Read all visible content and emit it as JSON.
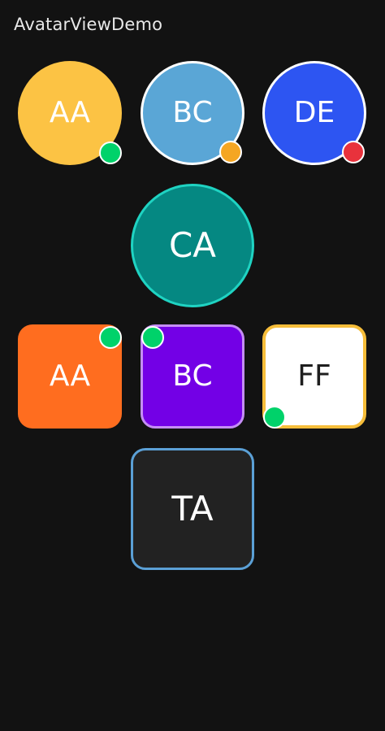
{
  "app": {
    "title": "AvatarViewDemo"
  },
  "colors": {
    "background": "#121212",
    "status_online": "#00d26a",
    "status_away": "#f5a623",
    "status_busy": "#e8323c"
  },
  "avatars": [
    {
      "initials": "AA",
      "shape": "circle",
      "fill": "#fcc344",
      "border": "none",
      "status": "online"
    },
    {
      "initials": "BC",
      "shape": "circle",
      "fill": "#5aa6d6",
      "border": "#ffffff",
      "status": "away"
    },
    {
      "initials": "DE",
      "shape": "circle",
      "fill": "#2d55f2",
      "border": "#ffffff",
      "status": "busy"
    },
    {
      "initials": "CA",
      "shape": "circle",
      "fill": "#058882",
      "border": "#1fd3c2",
      "status": "none"
    },
    {
      "initials": "AA",
      "shape": "rounded-square",
      "fill": "#ff6d1f",
      "border": "none",
      "status": "online"
    },
    {
      "initials": "BC",
      "shape": "rounded-square",
      "fill": "#7300e6",
      "border": "#c58df5",
      "status": "online"
    },
    {
      "initials": "FF",
      "shape": "rounded-square",
      "fill": "#ffffff",
      "border": "#f6bd3a",
      "status": "online"
    },
    {
      "initials": "TA",
      "shape": "rounded-square",
      "fill": "#222222",
      "border": "#5ba0d6",
      "status": "none"
    }
  ]
}
